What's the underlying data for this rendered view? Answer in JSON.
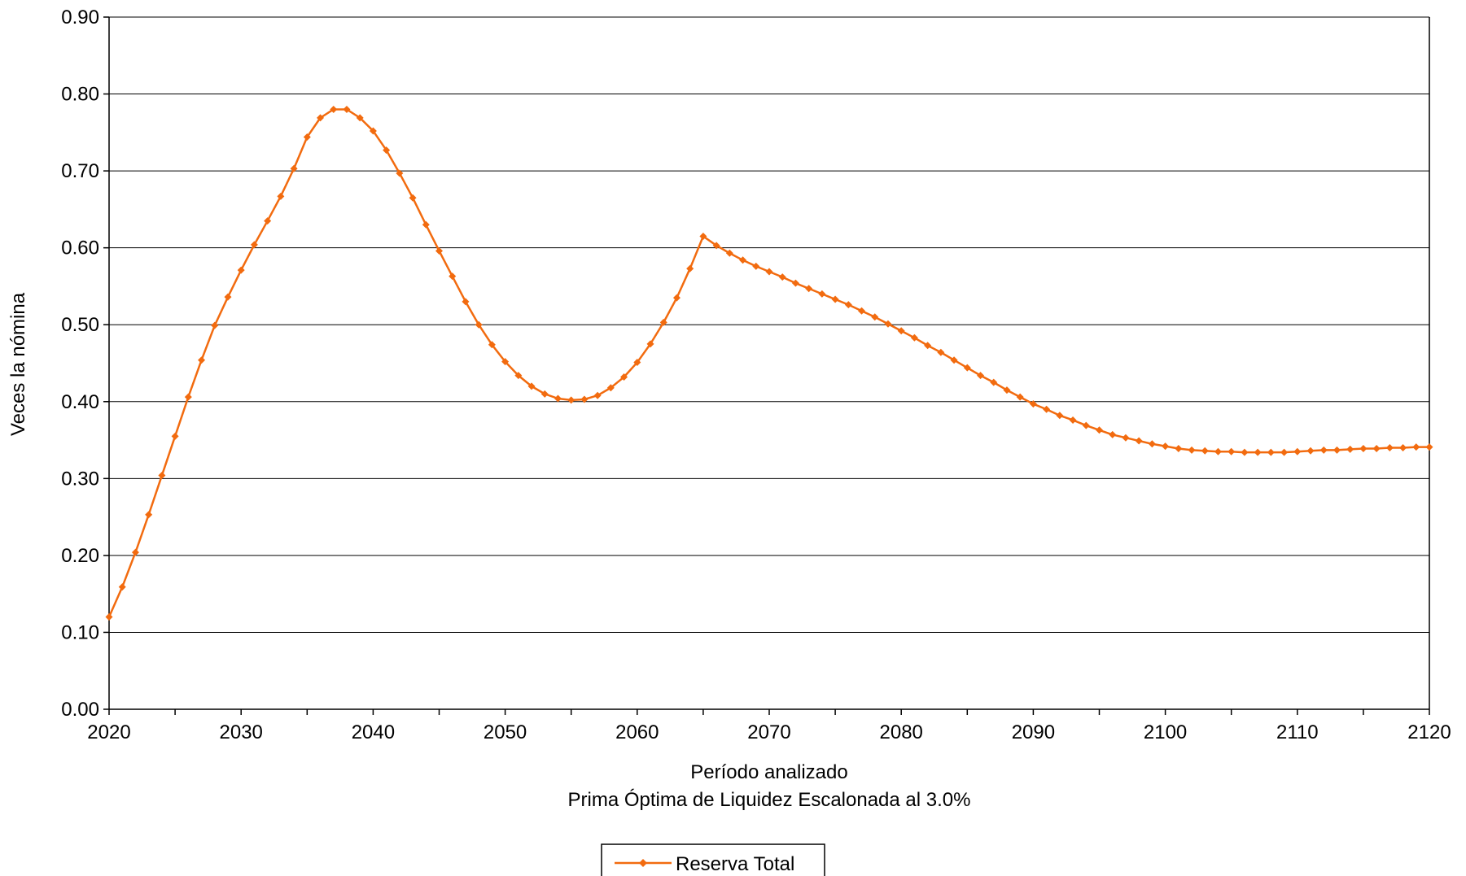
{
  "chart_data": {
    "type": "line",
    "title": "",
    "xlabel": "Período analizado",
    "subtitle": "Prima Óptima de Liquidez Escalonada al 3.0%",
    "ylabel": "Veces la nómina",
    "xlim": [
      2020,
      2120
    ],
    "ylim": [
      0.0,
      0.9
    ],
    "xticks": [
      "2020",
      "2030",
      "2040",
      "2050",
      "2060",
      "2070",
      "2080",
      "2090",
      "2100",
      "2110",
      "2120"
    ],
    "yticks": [
      "0.00",
      "0.10",
      "0.20",
      "0.30",
      "0.40",
      "0.50",
      "0.60",
      "0.70",
      "0.80",
      "0.90"
    ],
    "grid": "horizontal",
    "legend_position": "bottom-center",
    "series": [
      {
        "name": "Reserva Total",
        "color": "#F26B0F",
        "marker": "diamond",
        "x": [
          2020,
          2021,
          2022,
          2023,
          2024,
          2025,
          2026,
          2027,
          2028,
          2029,
          2030,
          2031,
          2032,
          2033,
          2034,
          2035,
          2036,
          2037,
          2038,
          2039,
          2040,
          2041,
          2042,
          2043,
          2044,
          2045,
          2046,
          2047,
          2048,
          2049,
          2050,
          2051,
          2052,
          2053,
          2054,
          2055,
          2056,
          2057,
          2058,
          2059,
          2060,
          2061,
          2062,
          2063,
          2064,
          2065,
          2066,
          2067,
          2068,
          2069,
          2070,
          2071,
          2072,
          2073,
          2074,
          2075,
          2076,
          2077,
          2078,
          2079,
          2080,
          2081,
          2082,
          2083,
          2084,
          2085,
          2086,
          2087,
          2088,
          2089,
          2090,
          2091,
          2092,
          2093,
          2094,
          2095,
          2096,
          2097,
          2098,
          2099,
          2100,
          2101,
          2102,
          2103,
          2104,
          2105,
          2106,
          2107,
          2108,
          2109,
          2110,
          2111,
          2112,
          2113,
          2114,
          2115,
          2116,
          2117,
          2118,
          2119,
          2120
        ],
        "values": [
          0.12,
          0.159,
          0.204,
          0.253,
          0.304,
          0.355,
          0.406,
          0.454,
          0.499,
          0.536,
          0.571,
          0.604,
          0.635,
          0.667,
          0.703,
          0.744,
          0.769,
          0.78,
          0.78,
          0.769,
          0.752,
          0.727,
          0.697,
          0.665,
          0.63,
          0.596,
          0.563,
          0.53,
          0.5,
          0.474,
          0.452,
          0.434,
          0.42,
          0.41,
          0.404,
          0.402,
          0.403,
          0.408,
          0.418,
          0.432,
          0.451,
          0.475,
          0.503,
          0.535,
          0.573,
          0.615,
          0.603,
          0.593,
          0.584,
          0.576,
          0.569,
          0.562,
          0.554,
          0.547,
          0.54,
          0.533,
          0.526,
          0.518,
          0.51,
          0.501,
          0.492,
          0.483,
          0.473,
          0.464,
          0.454,
          0.444,
          0.434,
          0.425,
          0.415,
          0.406,
          0.397,
          0.39,
          0.382,
          0.376,
          0.369,
          0.363,
          0.357,
          0.353,
          0.349,
          0.345,
          0.342,
          0.339,
          0.337,
          0.336,
          0.335,
          0.335,
          0.334,
          0.334,
          0.334,
          0.334,
          0.335,
          0.336,
          0.337,
          0.337,
          0.338,
          0.339,
          0.339,
          0.34,
          0.34,
          0.341,
          0.341
        ]
      }
    ]
  }
}
